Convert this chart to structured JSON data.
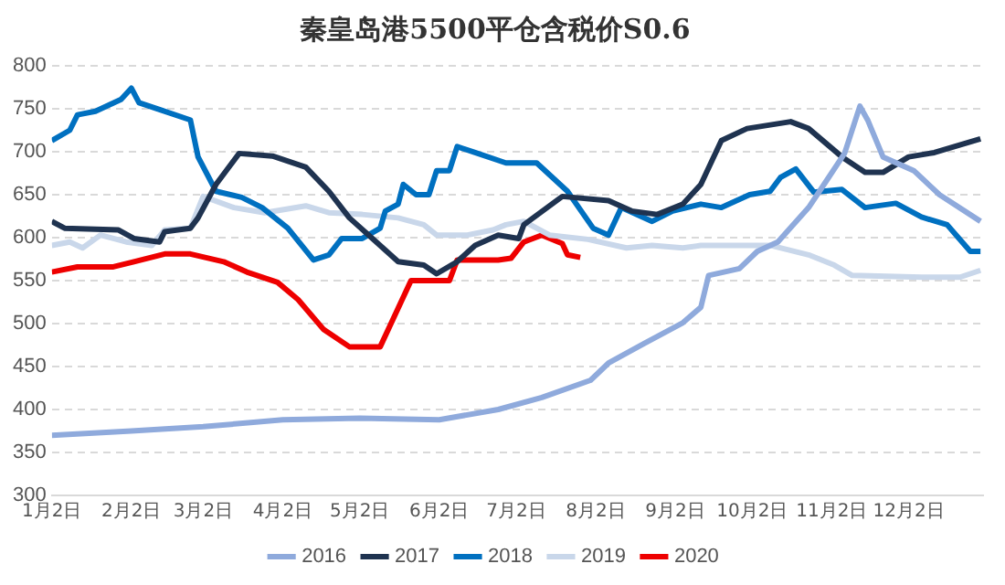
{
  "chart_data": {
    "type": "line",
    "title": "秦皇岛港5500平仓含税价S0.6",
    "xlim": [
      "--01-02",
      "--12-31"
    ],
    "xticks": [
      {
        "value": "--01-02",
        "label": "1月2日"
      },
      {
        "value": "--02-02",
        "label": "2月2日"
      },
      {
        "value": "--03-02",
        "label": "3月2日"
      },
      {
        "value": "--04-02",
        "label": "4月2日"
      },
      {
        "value": "--05-02",
        "label": "5月2日"
      },
      {
        "value": "--06-02",
        "label": "6月2日"
      },
      {
        "value": "--07-02",
        "label": "7月2日"
      },
      {
        "value": "--08-02",
        "label": "8月2日"
      },
      {
        "value": "--09-02",
        "label": "9月2日"
      },
      {
        "value": "--10-02",
        "label": "10月2日"
      },
      {
        "value": "--11-02",
        "label": "11月2日"
      },
      {
        "value": "--12-02",
        "label": "12月2日"
      }
    ],
    "ylim": [
      300,
      800
    ],
    "yticks": [
      300,
      350,
      400,
      450,
      500,
      550,
      600,
      650,
      700,
      750,
      800
    ],
    "grid": "y",
    "legend": "bottom",
    "series": [
      {
        "name": "2016",
        "color": "#8faadc",
        "x": [
          "--01-02",
          "--02-02",
          "--03-02",
          "--04-02",
          "--05-02",
          "--06-02",
          "--06-25",
          "--07-12",
          "--07-31",
          "--08-07",
          "--08-21",
          "--09-05",
          "--09-12",
          "--09-15",
          "--09-27",
          "--10-04",
          "--10-12",
          "--10-24",
          "--10-30",
          "--11-07",
          "--11-13",
          "--11-16",
          "--11-22",
          "--12-04",
          "--12-14",
          "--12-30"
        ],
        "values": [
          370,
          375,
          380,
          388,
          390,
          388,
          400,
          414,
          434,
          454,
          477,
          501,
          519,
          556,
          564,
          584,
          595,
          635,
          662,
          698,
          753,
          737,
          694,
          678,
          650,
          619
        ]
      },
      {
        "name": "2017",
        "color": "#1f3350",
        "x": [
          "--01-02",
          "--01-07",
          "--01-28",
          "--02-03",
          "--02-13",
          "--02-15",
          "--02-25",
          "--02-28",
          "--03-07",
          "--03-16",
          "--03-29",
          "--04-11",
          "--04-20",
          "--04-28",
          "--05-07",
          "--05-17",
          "--05-27",
          "--06-01",
          "--06-09",
          "--06-16",
          "--06-25",
          "--07-03",
          "--07-05",
          "--07-20",
          "--08-07",
          "--08-16",
          "--08-26",
          "--09-05",
          "--09-12",
          "--09-20",
          "--09-30",
          "--10-17",
          "--10-24",
          "--11-06",
          "--11-15",
          "--11-22",
          "--12-02",
          "--12-12",
          "--12-30"
        ],
        "values": [
          619,
          611,
          609,
          599,
          595,
          607,
          611,
          623,
          662,
          698,
          695,
          682,
          654,
          623,
          599,
          572,
          568,
          558,
          572,
          591,
          603,
          599,
          615,
          648,
          643,
          631,
          627,
          639,
          662,
          713,
          727,
          735,
          727,
          694,
          676,
          676,
          694,
          699,
          715
        ]
      },
      {
        "name": "2018",
        "color": "#0070c0",
        "x": [
          "--01-02",
          "--01-09",
          "--01-12",
          "--01-19",
          "--01-29",
          "--02-02",
          "--02-05",
          "--02-13",
          "--02-25",
          "--02-28",
          "--03-07",
          "--03-17",
          "--03-25",
          "--04-04",
          "--04-14",
          "--04-20",
          "--04-25",
          "--05-03",
          "--05-10",
          "--05-12",
          "--05-17",
          "--05-19",
          "--05-24",
          "--05-29",
          "--06-01",
          "--06-06",
          "--06-09",
          "--06-16",
          "--06-28",
          "--07-10",
          "--07-22",
          "--08-01",
          "--08-07",
          "--08-12",
          "--08-24",
          "--09-01",
          "--09-12",
          "--09-20",
          "--10-01",
          "--10-09",
          "--10-13",
          "--10-19",
          "--10-26",
          "--11-06",
          "--11-15",
          "--11-27",
          "--12-07",
          "--12-17",
          "--12-26",
          "--12-30"
        ],
        "values": [
          713,
          725,
          743,
          747,
          761,
          774,
          757,
          749,
          737,
          694,
          654,
          647,
          635,
          611,
          574,
          580,
          599,
          599,
          611,
          631,
          639,
          662,
          650,
          650,
          678,
          678,
          706,
          699,
          687,
          687,
          654,
          611,
          603,
          635,
          619,
          631,
          639,
          635,
          650,
          654,
          670,
          680,
          653,
          656,
          635,
          640,
          624,
          615,
          584,
          584
        ]
      },
      {
        "name": "2019",
        "color": "#c9d7ea",
        "x": [
          "--01-02",
          "--01-09",
          "--01-14",
          "--01-21",
          "--01-31",
          "--02-10",
          "--02-15",
          "--02-25",
          "--03-02",
          "--03-14",
          "--03-26",
          "--04-11",
          "--04-20",
          "--05-03",
          "--05-17",
          "--05-27",
          "--06-01",
          "--06-13",
          "--06-23",
          "--06-28",
          "--07-05",
          "--07-15",
          "--07-30",
          "--08-14",
          "--08-24",
          "--09-05",
          "--09-12",
          "--10-09",
          "--10-24",
          "--11-03",
          "--11-10",
          "--12-07",
          "--12-22",
          "--12-30"
        ],
        "values": [
          591,
          595,
          588,
          603,
          595,
          591,
          609,
          611,
          648,
          635,
          629,
          637,
          629,
          627,
          623,
          615,
          603,
          603,
          609,
          615,
          619,
          603,
          598,
          588,
          591,
          588,
          591,
          591,
          580,
          568,
          556,
          554,
          554,
          562
        ]
      },
      {
        "name": "2020",
        "color": "#ee0000",
        "x": [
          "--01-02",
          "--01-12",
          "--01-26",
          "--02-03",
          "--02-15",
          "--02-25",
          "--03-10",
          "--03-19",
          "--03-31",
          "--04-08",
          "--04-18",
          "--04-28",
          "--05-10",
          "--05-15",
          "--05-22",
          "--06-06",
          "--06-09",
          "--06-25",
          "--06-30",
          "--07-05",
          "--07-12",
          "--07-20",
          "--07-22",
          "--07-27"
        ],
        "values": [
          560,
          566,
          566,
          572,
          581,
          581,
          572,
          560,
          548,
          528,
          493,
          473,
          473,
          505,
          550,
          550,
          574,
          574,
          576,
          595,
          603,
          593,
          580,
          577
        ]
      }
    ]
  }
}
